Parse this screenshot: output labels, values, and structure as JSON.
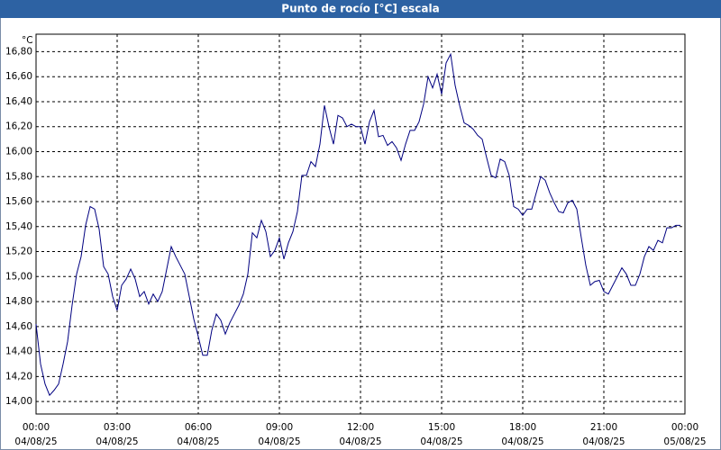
{
  "chart_data": {
    "type": "line",
    "title": "Punto de rocío [°C] escala",
    "y_unit": "°C",
    "x": [
      0,
      10,
      20,
      30,
      40,
      50,
      60,
      70,
      80,
      90,
      100,
      110,
      120,
      130,
      140,
      150,
      160,
      170,
      180,
      190,
      200,
      210,
      220,
      230,
      240,
      250,
      260,
      270,
      280,
      290,
      300,
      310,
      320,
      330,
      340,
      350,
      360,
      370,
      380,
      390,
      400,
      410,
      420,
      430,
      440,
      450,
      460,
      470,
      480,
      490,
      500,
      510,
      520,
      530,
      540,
      550,
      560,
      570,
      580,
      590,
      600,
      610,
      620,
      630,
      640,
      650,
      660,
      670,
      680,
      690,
      700,
      710,
      720,
      730,
      740,
      750,
      760,
      770,
      780,
      790,
      800,
      810,
      820,
      830,
      840,
      850,
      860,
      870,
      880,
      890,
      900,
      910,
      920,
      930,
      940,
      950,
      960,
      970,
      980,
      990,
      1000,
      1010,
      1020,
      1030,
      1040,
      1050,
      1060,
      1070,
      1080,
      1090,
      1100,
      1110,
      1120,
      1130,
      1140,
      1150,
      1160,
      1170,
      1180,
      1190,
      1200,
      1210,
      1220,
      1230,
      1240,
      1250,
      1260,
      1270,
      1280,
      1290,
      1300,
      1310,
      1320,
      1330,
      1340,
      1350,
      1360,
      1370,
      1380,
      1390,
      1400,
      1410,
      1420,
      1430
    ],
    "series": [
      {
        "name": "Punto de rocío",
        "color": "#000080",
        "values": [
          14.62,
          14.3,
          14.14,
          14.05,
          14.09,
          14.14,
          14.3,
          14.48,
          14.77,
          15.02,
          15.16,
          15.41,
          15.56,
          15.54,
          15.38,
          15.08,
          15.02,
          14.84,
          14.73,
          14.93,
          14.98,
          15.06,
          14.98,
          14.84,
          14.88,
          14.78,
          14.86,
          14.8,
          14.88,
          15.06,
          15.24,
          15.16,
          15.09,
          15.02,
          14.84,
          14.66,
          14.52,
          14.37,
          14.37,
          14.57,
          14.7,
          14.65,
          14.54,
          14.63,
          14.7,
          14.77,
          14.86,
          15.02,
          15.35,
          15.31,
          15.45,
          15.36,
          15.16,
          15.21,
          15.31,
          15.14,
          15.27,
          15.36,
          15.52,
          15.81,
          15.81,
          15.92,
          15.88,
          16.06,
          16.37,
          16.2,
          16.06,
          16.29,
          16.27,
          16.2,
          16.22,
          16.2,
          16.2,
          16.06,
          16.24,
          16.33,
          16.12,
          16.13,
          16.05,
          16.08,
          16.03,
          15.93,
          16.06,
          16.17,
          16.17,
          16.24,
          16.38,
          16.6,
          16.51,
          16.62,
          16.46,
          16.71,
          16.78,
          16.53,
          16.37,
          16.23,
          16.21,
          16.18,
          16.13,
          16.1,
          15.95,
          15.81,
          15.79,
          15.94,
          15.92,
          15.81,
          15.56,
          15.54,
          15.49,
          15.54,
          15.54,
          15.67,
          15.8,
          15.77,
          15.67,
          15.59,
          15.52,
          15.51,
          15.59,
          15.61,
          15.54,
          15.31,
          15.09,
          14.93,
          14.96,
          14.97,
          14.88,
          14.86,
          14.93,
          15.0,
          15.07,
          15.02,
          14.93,
          14.93,
          15.02,
          15.16,
          15.24,
          15.21,
          15.29,
          15.27,
          15.39,
          15.39,
          15.41,
          15.41
        ]
      }
    ],
    "xlim": [
      0,
      1440
    ],
    "xticks": [
      {
        "value": 0,
        "label": "00:00"
      },
      {
        "value": 180,
        "label": "03:00"
      },
      {
        "value": 360,
        "label": "06:00"
      },
      {
        "value": 540,
        "label": "09:00"
      },
      {
        "value": 720,
        "label": "12:00"
      },
      {
        "value": 900,
        "label": "15:00"
      },
      {
        "value": 1080,
        "label": "18:00"
      },
      {
        "value": 1260,
        "label": "21:00"
      },
      {
        "value": 1440,
        "label": "00:00"
      }
    ],
    "xtick_dates": [
      "04/08/25",
      "04/08/25",
      "04/08/25",
      "04/08/25",
      "04/08/25",
      "04/08/25",
      "04/08/25",
      "04/08/25",
      "05/08/25"
    ],
    "ylim": [
      13.9,
      16.94
    ],
    "yticks": [
      {
        "value": 14.0,
        "label": "14,00"
      },
      {
        "value": 14.2,
        "label": "14,20"
      },
      {
        "value": 14.4,
        "label": "14,40"
      },
      {
        "value": 14.6,
        "label": "14,60"
      },
      {
        "value": 14.8,
        "label": "14,80"
      },
      {
        "value": 15.0,
        "label": "15,00"
      },
      {
        "value": 15.2,
        "label": "15,20"
      },
      {
        "value": 15.4,
        "label": "15,40"
      },
      {
        "value": 15.6,
        "label": "15,60"
      },
      {
        "value": 15.8,
        "label": "15,80"
      },
      {
        "value": 16.0,
        "label": "16,00"
      },
      {
        "value": 16.2,
        "label": "16,20"
      },
      {
        "value": 16.4,
        "label": "16,40"
      },
      {
        "value": 16.6,
        "label": "16,60"
      },
      {
        "value": 16.8,
        "label": "16,80"
      }
    ],
    "grid": true
  }
}
